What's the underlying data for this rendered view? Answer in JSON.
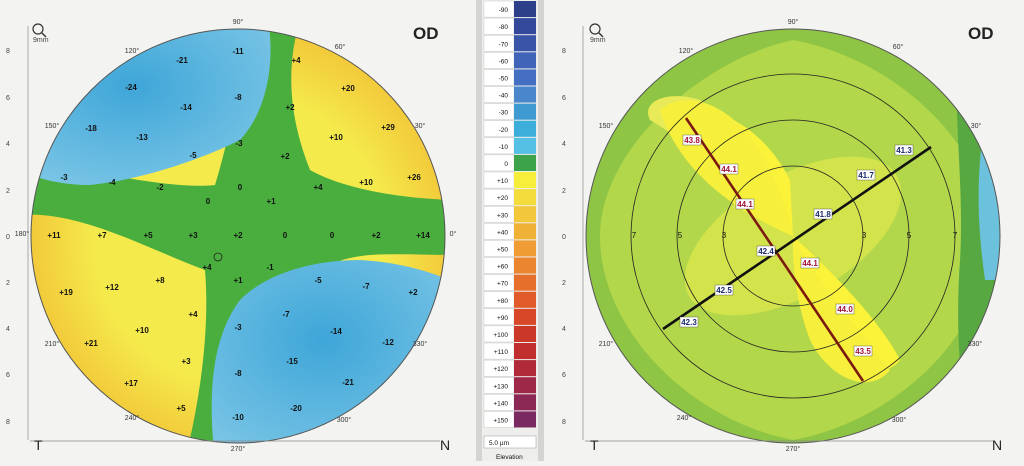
{
  "left_map": {
    "eye_label": "OD",
    "temporal_label": "T",
    "nasal_label": "N",
    "zoom_label": "9mm",
    "degrees": [
      "90°",
      "60°",
      "30°",
      "0°",
      "330°",
      "300°",
      "270°",
      "240°",
      "210°",
      "180°",
      "150°",
      "120°"
    ],
    "y_ticks": [
      "8",
      "6",
      "4",
      "2",
      "0",
      "2",
      "4",
      "6",
      "8"
    ],
    "values": [
      "-11",
      "-21",
      "+4",
      "-24",
      "-8",
      "+20",
      "-14",
      "+2",
      "-18",
      "-13",
      "+10",
      "+29",
      "-5",
      "-3",
      "+2",
      "-3",
      "-4",
      "-2",
      "+4",
      "+10",
      "+26",
      "0",
      "+1",
      "0",
      "+11",
      "+7",
      "+5",
      "+3",
      "+2",
      "0",
      "0",
      "+2",
      "+14",
      "+4",
      "-1",
      "+8",
      "+1",
      "-5",
      "+19",
      "+12",
      "-7",
      "+2",
      "+4",
      "-7",
      "+10",
      "-3",
      "-14",
      "-12",
      "+21",
      "+3",
      "-15",
      "-8",
      "+17",
      "-21",
      "+5",
      "-20",
      "-10"
    ]
  },
  "scale": {
    "values": [
      "-90",
      "-80",
      "-70",
      "-60",
      "-50",
      "-40",
      "-30",
      "-20",
      "-10",
      "0",
      "+10",
      "+20",
      "+30",
      "+40",
      "+50",
      "+60",
      "+70",
      "+80",
      "+90",
      "+100",
      "+110",
      "+120",
      "+130",
      "+140",
      "+150"
    ],
    "step_label": "5.0 µm",
    "bottom_label": "Elevation"
  },
  "right_map": {
    "eye_label": "OD",
    "temporal_label": "T",
    "nasal_label": "N",
    "zoom_label": "9mm",
    "degrees": [
      "90°",
      "60°",
      "30°",
      "330°",
      "300°",
      "270°",
      "240°",
      "210°",
      "150°",
      "120°"
    ],
    "y_ticks": [
      "8",
      "6",
      "4",
      "2",
      "0",
      "2",
      "4",
      "6",
      "8"
    ],
    "ring_labels": [
      "7",
      "5",
      "3",
      "3",
      "5",
      "7"
    ],
    "steep_k": [
      "43.8",
      "44.1",
      "44.1",
      "44.1",
      "44.0",
      "43.5"
    ],
    "flat_k": [
      "41.3",
      "41.7",
      "41.8",
      "42.4",
      "42.5",
      "42.3"
    ]
  }
}
